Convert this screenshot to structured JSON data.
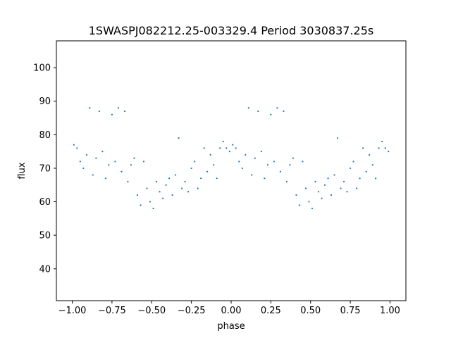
{
  "chart_data": {
    "type": "scatter",
    "title": "1SWASPJ082212.25-003329.4 Period 3030837.25s",
    "xlabel": "phase",
    "ylabel": "flux",
    "xlim": [
      -1.1,
      1.1
    ],
    "ylim": [
      30.5,
      108
    ],
    "xticks": [
      -1.0,
      -0.75,
      -0.5,
      -0.25,
      0.0,
      0.25,
      0.5,
      0.75,
      1.0
    ],
    "xtick_labels": [
      "−1.00",
      "−0.75",
      "−0.50",
      "−0.25",
      "0.00",
      "0.25",
      "0.50",
      "0.75",
      "1.00"
    ],
    "yticks": [
      40,
      50,
      60,
      70,
      80,
      90,
      100
    ],
    "ytick_labels": [
      "40",
      "50",
      "60",
      "70",
      "80",
      "90",
      "100"
    ],
    "grid": false,
    "legend": "none",
    "marker_color": "#1f77b4",
    "x": [
      -0.99,
      -0.97,
      -0.95,
      -0.93,
      -0.91,
      -0.89,
      -0.87,
      -0.85,
      -0.83,
      -0.81,
      -0.79,
      -0.77,
      -0.75,
      -0.73,
      -0.71,
      -0.69,
      -0.67,
      -0.65,
      -0.63,
      -0.61,
      -0.59,
      -0.57,
      -0.55,
      -0.53,
      -0.51,
      -0.49,
      -0.47,
      -0.45,
      -0.43,
      -0.41,
      -0.39,
      -0.37,
      -0.35,
      -0.33,
      -0.31,
      -0.29,
      -0.27,
      -0.25,
      -0.23,
      -0.21,
      -0.19,
      -0.17,
      -0.15,
      -0.13,
      -0.11,
      -0.09,
      -0.07,
      -0.05,
      -0.03,
      -0.01,
      0.01,
      0.03,
      0.05,
      0.07,
      0.09,
      0.11,
      0.13,
      0.15,
      0.17,
      0.19,
      0.21,
      0.23,
      0.25,
      0.27,
      0.29,
      0.31,
      0.33,
      0.35,
      0.37,
      0.39,
      0.41,
      0.43,
      0.45,
      0.47,
      0.49,
      0.51,
      0.53,
      0.55,
      0.57,
      0.59,
      0.61,
      0.63,
      0.65,
      0.67,
      0.69,
      0.71,
      0.73,
      0.75,
      0.77,
      0.79,
      0.81,
      0.83,
      0.85,
      0.87,
      0.89,
      0.91,
      0.93,
      0.95,
      0.97,
      0.99
    ],
    "y": [
      77,
      76,
      72,
      70,
      74,
      88,
      68,
      73,
      87,
      75,
      67,
      71,
      86,
      72,
      88,
      69,
      87,
      66,
      71,
      73,
      62,
      59,
      72,
      64,
      60,
      58,
      66,
      63,
      61,
      65,
      67,
      62,
      68,
      79,
      64,
      66,
      63,
      70,
      72,
      64,
      67,
      76,
      69,
      74,
      71,
      67,
      76,
      78,
      76,
      75,
      77,
      76,
      72,
      70,
      74,
      88,
      68,
      73,
      87,
      75,
      67,
      71,
      86,
      72,
      88,
      69,
      87,
      66,
      71,
      73,
      62,
      59,
      72,
      64,
      60,
      58,
      66,
      63,
      61,
      65,
      67,
      62,
      68,
      79,
      64,
      66,
      63,
      70,
      72,
      64,
      67,
      76,
      69,
      74,
      71,
      67,
      76,
      78,
      76,
      75
    ]
  }
}
